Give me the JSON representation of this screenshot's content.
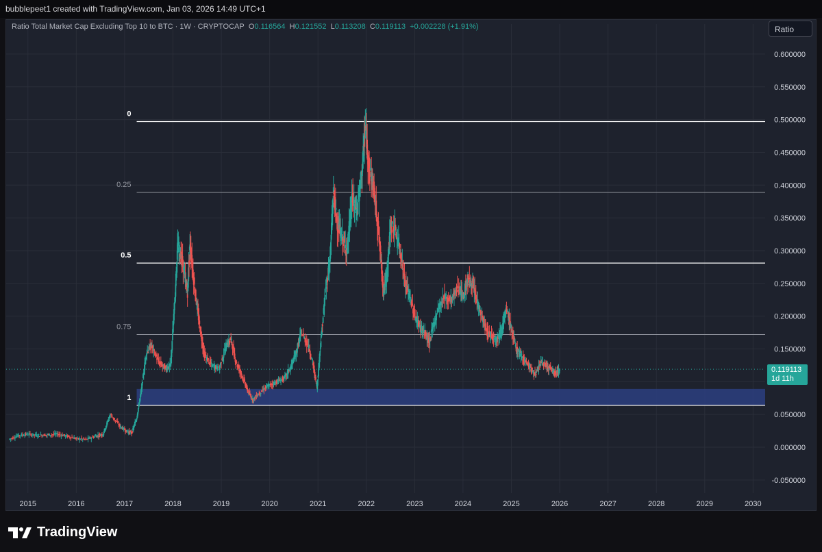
{
  "header": {
    "attribution": "bubblepeet1 created with TradingView.com, Jan 03, 2026 14:49 UTC+1"
  },
  "legend": {
    "title": "Ratio Total Market Cap Excluding Top 10 to BTC · 1W · CRYPTOCAP",
    "o_label": "O",
    "o_value": "0.116564",
    "h_label": "H",
    "h_value": "0.121552",
    "l_label": "L",
    "l_value": "0.113208",
    "c_label": "C",
    "c_value": "0.119113",
    "change": "+0.002228 (+1.91%)"
  },
  "toolbar": {
    "ratio_button": "Ratio"
  },
  "price_tag": {
    "price": "0.119113",
    "countdown": "1d 11h"
  },
  "branding": {
    "logo_text": "TradingView"
  },
  "colors": {
    "up": "#26a69a",
    "down": "#ef5350",
    "fib_line": "#ffffff",
    "fib_zone": "#2c3e80",
    "background": "#1e222d"
  },
  "chart_data": {
    "type": "line",
    "title": "Ratio Total Market Cap Excluding Top 10 to BTC",
    "interval": "1W",
    "xlim": [
      2014.55,
      2030.25
    ],
    "ylim": [
      -0.07,
      0.625
    ],
    "x_ticks": [
      "2015",
      "2016",
      "2017",
      "2018",
      "2019",
      "2020",
      "2021",
      "2022",
      "2023",
      "2024",
      "2025",
      "2026",
      "2027",
      "2028",
      "2029",
      "2030"
    ],
    "y_ticks": [
      "0.600000",
      "0.550000",
      "0.500000",
      "0.450000",
      "0.400000",
      "0.350000",
      "0.300000",
      "0.250000",
      "0.200000",
      "0.150000",
      "0.100000",
      "0.050000",
      "0.000000",
      "-0.050000"
    ],
    "fib_levels": [
      {
        "label": "0",
        "value": 0.497
      },
      {
        "label": "0.25",
        "value": 0.389
      },
      {
        "label": "0.5",
        "value": 0.281
      },
      {
        "label": "0.75",
        "value": 0.172
      },
      {
        "label": "1",
        "value": 0.064
      }
    ],
    "highlight_zone": [
      0.064,
      0.089
    ],
    "series": [
      {
        "x": [
          2014.6,
          2014.8,
          2015.0,
          2015.2,
          2015.4,
          2015.6,
          2015.8,
          2016.0,
          2016.2,
          2016.4,
          2016.55,
          2016.7,
          2016.9,
          2017.05,
          2017.15,
          2017.25,
          2017.35,
          2017.45,
          2017.55,
          2017.7,
          2017.85,
          2017.95,
          2018.05,
          2018.1,
          2018.2,
          2018.3,
          2018.35,
          2018.45,
          2018.55,
          2018.65,
          2018.8,
          2018.95,
          2019.1,
          2019.2,
          2019.3,
          2019.45,
          2019.55,
          2019.65,
          2019.75,
          2019.9,
          2020.0,
          2020.15,
          2020.3,
          2020.45,
          2020.55,
          2020.65,
          2020.8,
          2020.9,
          2020.98,
          2021.05,
          2021.15,
          2021.25,
          2021.32,
          2021.4,
          2021.5,
          2021.6,
          2021.7,
          2021.8,
          2021.9,
          2021.98,
          2022.05,
          2022.15,
          2022.25,
          2022.35,
          2022.42,
          2022.5,
          2022.6,
          2022.7,
          2022.8,
          2022.9,
          2023.0,
          2023.1,
          2023.2,
          2023.3,
          2023.45,
          2023.6,
          2023.75,
          2023.9,
          2024.0,
          2024.1,
          2024.2,
          2024.3,
          2024.4,
          2024.5,
          2024.6,
          2024.7,
          2024.8,
          2024.9,
          2025.0,
          2025.1,
          2025.2,
          2025.3,
          2025.4,
          2025.5,
          2025.6,
          2025.7,
          2025.8,
          2025.9,
          2026.0
        ],
        "values": [
          0.012,
          0.018,
          0.02,
          0.018,
          0.019,
          0.02,
          0.017,
          0.013,
          0.012,
          0.017,
          0.02,
          0.05,
          0.032,
          0.024,
          0.022,
          0.045,
          0.09,
          0.145,
          0.155,
          0.13,
          0.12,
          0.125,
          0.24,
          0.31,
          0.28,
          0.235,
          0.31,
          0.24,
          0.185,
          0.14,
          0.125,
          0.12,
          0.155,
          0.165,
          0.13,
          0.105,
          0.085,
          0.072,
          0.08,
          0.09,
          0.095,
          0.1,
          0.105,
          0.125,
          0.145,
          0.175,
          0.155,
          0.125,
          0.09,
          0.155,
          0.235,
          0.29,
          0.39,
          0.34,
          0.32,
          0.3,
          0.38,
          0.36,
          0.415,
          0.49,
          0.43,
          0.395,
          0.33,
          0.24,
          0.26,
          0.34,
          0.33,
          0.3,
          0.25,
          0.23,
          0.2,
          0.185,
          0.175,
          0.16,
          0.205,
          0.23,
          0.225,
          0.245,
          0.23,
          0.255,
          0.245,
          0.22,
          0.195,
          0.175,
          0.17,
          0.165,
          0.18,
          0.21,
          0.18,
          0.15,
          0.14,
          0.13,
          0.12,
          0.11,
          0.13,
          0.125,
          0.12,
          0.113,
          0.119
        ]
      }
    ]
  }
}
